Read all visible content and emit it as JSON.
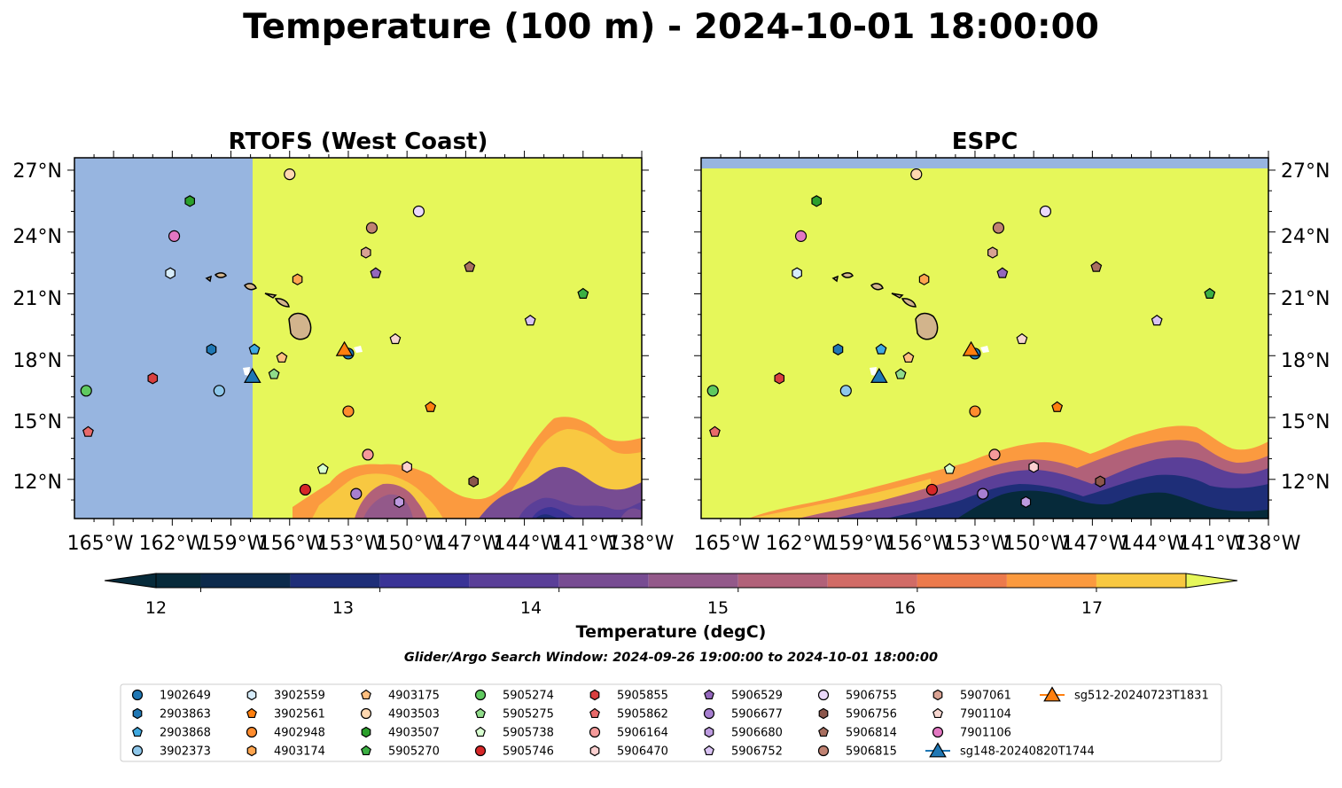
{
  "figure_title": "Temperature (100 m) - 2024-10-01 18:00:00",
  "search_window": "Glider/Argo Search Window: 2024-09-26 19:00:00 to 2024-10-01 18:00:00",
  "colors": {
    "fill_high": "#e6f75a",
    "no_data": "#97b5e0",
    "land": "#d2b48c"
  },
  "chart_data": [
    {
      "type": "heatmap",
      "title": "RTOFS (West Coast)",
      "lon_range": [
        -167,
        -138
      ],
      "lat_range": [
        10.1,
        27.6
      ],
      "x_ticks": [
        "165°W",
        "162°W",
        "159°W",
        "156°W",
        "153°W",
        "150°W",
        "147°W",
        "144°W",
        "141°W",
        "138°W"
      ],
      "y_ticks": [
        "27°N",
        "24°N",
        "21°N",
        "18°N",
        "15°N",
        "12°N"
      ],
      "no_data_region": "west of 157.9°W",
      "cold_region": "south of ~14°N, east of 156°W"
    },
    {
      "type": "heatmap",
      "title": "ESPC",
      "lon_range": [
        -167,
        -138
      ],
      "lat_range": [
        10.1,
        27.6
      ],
      "x_ticks": [
        "165°W",
        "162°W",
        "159°W",
        "156°W",
        "153°W",
        "150°W",
        "147°W",
        "144°W",
        "141°W",
        "138°W"
      ],
      "y_ticks": [
        "27°N",
        "24°N",
        "21°N",
        "18°N",
        "15°N",
        "12°N"
      ],
      "no_data_region": "north of 27.1°N",
      "cold_region": "south of ~14°N"
    }
  ],
  "colorbar": {
    "label": "Temperature (degC)",
    "min": 11.75,
    "max": 17.5,
    "extend": "both",
    "ticks": [
      "12",
      "13",
      "14",
      "15",
      "16",
      "17"
    ],
    "bins": [
      {
        "lo": 11.75,
        "hi": 12.0,
        "color": "#062a3a"
      },
      {
        "lo": 12.0,
        "hi": 12.5,
        "color": "#0c2a4c"
      },
      {
        "lo": 12.5,
        "hi": 13.0,
        "color": "#1e2e78"
      },
      {
        "lo": 13.0,
        "hi": 13.5,
        "color": "#3a3396"
      },
      {
        "lo": 13.5,
        "hi": 14.0,
        "color": "#5a3f98"
      },
      {
        "lo": 14.0,
        "hi": 14.5,
        "color": "#774c92"
      },
      {
        "lo": 14.5,
        "hi": 15.0,
        "color": "#93598a"
      },
      {
        "lo": 15.0,
        "hi": 15.5,
        "color": "#b16179"
      },
      {
        "lo": 15.5,
        "hi": 16.0,
        "color": "#d16b66"
      },
      {
        "lo": 16.0,
        "hi": 16.5,
        "color": "#ec7a4c"
      },
      {
        "lo": 16.5,
        "hi": 17.0,
        "color": "#fb9a3f"
      },
      {
        "lo": 17.0,
        "hi": 17.5,
        "color": "#f8c841"
      }
    ],
    "under_color": "#062a3a",
    "over_color": "#e6f75a"
  },
  "platforms": [
    {
      "id": "1902649",
      "marker": "circle",
      "color": "#1f77b4",
      "lon": -153.0,
      "lat": 18.1
    },
    {
      "id": "2903863",
      "marker": "hexagon",
      "color": "#1f77b4",
      "lon": -160.0,
      "lat": 18.3
    },
    {
      "id": "2903868",
      "marker": "pentagon",
      "color": "#3fa9e0",
      "lon": -157.8,
      "lat": 18.3
    },
    {
      "id": "3902373",
      "marker": "circle",
      "color": "#8ec7ea",
      "lon": -159.6,
      "lat": 16.3
    },
    {
      "id": "3902559",
      "marker": "hexagon",
      "color": "#d6ecfa",
      "lon": -162.1,
      "lat": 22.0
    },
    {
      "id": "3902561",
      "marker": "pentagon",
      "color": "#ff7f0e",
      "lon": -148.8,
      "lat": 15.5
    },
    {
      "id": "4902948",
      "marker": "circle",
      "color": "#ff8c2e",
      "lon": -153.0,
      "lat": 15.3
    },
    {
      "id": "4903174",
      "marker": "hexagon",
      "color": "#ffa54f",
      "lon": -155.6,
      "lat": 21.7
    },
    {
      "id": "4903175",
      "marker": "pentagon",
      "color": "#ffbf7f",
      "lon": -156.4,
      "lat": 17.9
    },
    {
      "id": "4903503",
      "marker": "circle",
      "color": "#ffd8b0",
      "lon": -156.0,
      "lat": 26.8
    },
    {
      "id": "4903507",
      "marker": "hexagon",
      "color": "#2ca02c",
      "lon": -161.1,
      "lat": 25.5
    },
    {
      "id": "5905270",
      "marker": "pentagon",
      "color": "#3cb043",
      "lon": -141.0,
      "lat": 21.0
    },
    {
      "id": "5905274",
      "marker": "circle",
      "color": "#5fc95f",
      "lon": -166.4,
      "lat": 16.3
    },
    {
      "id": "5905275",
      "marker": "pentagon",
      "color": "#90dc8a",
      "lon": -156.8,
      "lat": 17.1
    },
    {
      "id": "5905738",
      "marker": "pentagon",
      "color": "#d8ffd0",
      "lon": -154.3,
      "lat": 12.5
    },
    {
      "id": "5905746",
      "marker": "circle",
      "color": "#d62728",
      "lon": -155.2,
      "lat": 11.5
    },
    {
      "id": "5905855",
      "marker": "hexagon",
      "color": "#d93f3f",
      "lon": -163.0,
      "lat": 16.9
    },
    {
      "id": "5905862",
      "marker": "pentagon",
      "color": "#e86a6a",
      "lon": -166.3,
      "lat": 14.3
    },
    {
      "id": "5906164",
      "marker": "circle",
      "color": "#f59a9a",
      "lon": -152.0,
      "lat": 13.2
    },
    {
      "id": "5906470",
      "marker": "hexagon",
      "color": "#fbd0d0",
      "lon": -150.0,
      "lat": 12.6
    },
    {
      "id": "5906529",
      "marker": "pentagon",
      "color": "#9467bd",
      "lon": -151.6,
      "lat": 22.0
    },
    {
      "id": "5906677",
      "marker": "circle",
      "color": "#a77fd0",
      "lon": -152.6,
      "lat": 11.3
    },
    {
      "id": "5906680",
      "marker": "hexagon",
      "color": "#bd9be0",
      "lon": -150.4,
      "lat": 10.9
    },
    {
      "id": "5906752",
      "marker": "pentagon",
      "color": "#d9c3f3",
      "lon": -143.7,
      "lat": 19.7
    },
    {
      "id": "5906755",
      "marker": "circle",
      "color": "#ebd9fb",
      "lon": -149.4,
      "lat": 25.0
    },
    {
      "id": "5906756",
      "marker": "hexagon",
      "color": "#8c564b",
      "lon": -146.6,
      "lat": 11.9
    },
    {
      "id": "5906814",
      "marker": "pentagon",
      "color": "#a96f60",
      "lon": -146.8,
      "lat": 22.3
    },
    {
      "id": "5906815",
      "marker": "circle",
      "color": "#c08272",
      "lon": -151.8,
      "lat": 24.2
    },
    {
      "id": "5907061",
      "marker": "hexagon",
      "color": "#d9a293",
      "lon": -152.1,
      "lat": 23.0
    },
    {
      "id": "7901104",
      "marker": "pentagon",
      "color": "#f7d6cf",
      "lon": -150.6,
      "lat": 18.8
    },
    {
      "id": "7901106",
      "marker": "circle",
      "color": "#e377c2",
      "lon": -161.9,
      "lat": 23.8
    },
    {
      "id": "sg148-20240820T1744",
      "marker": "triangle",
      "color": "#1f77b4",
      "lon": -157.9,
      "lat": 17.0
    },
    {
      "id": "sg512-20240723T1831",
      "marker": "triangle",
      "color": "#ff7f0e",
      "lon": -153.2,
      "lat": 18.3
    }
  ]
}
